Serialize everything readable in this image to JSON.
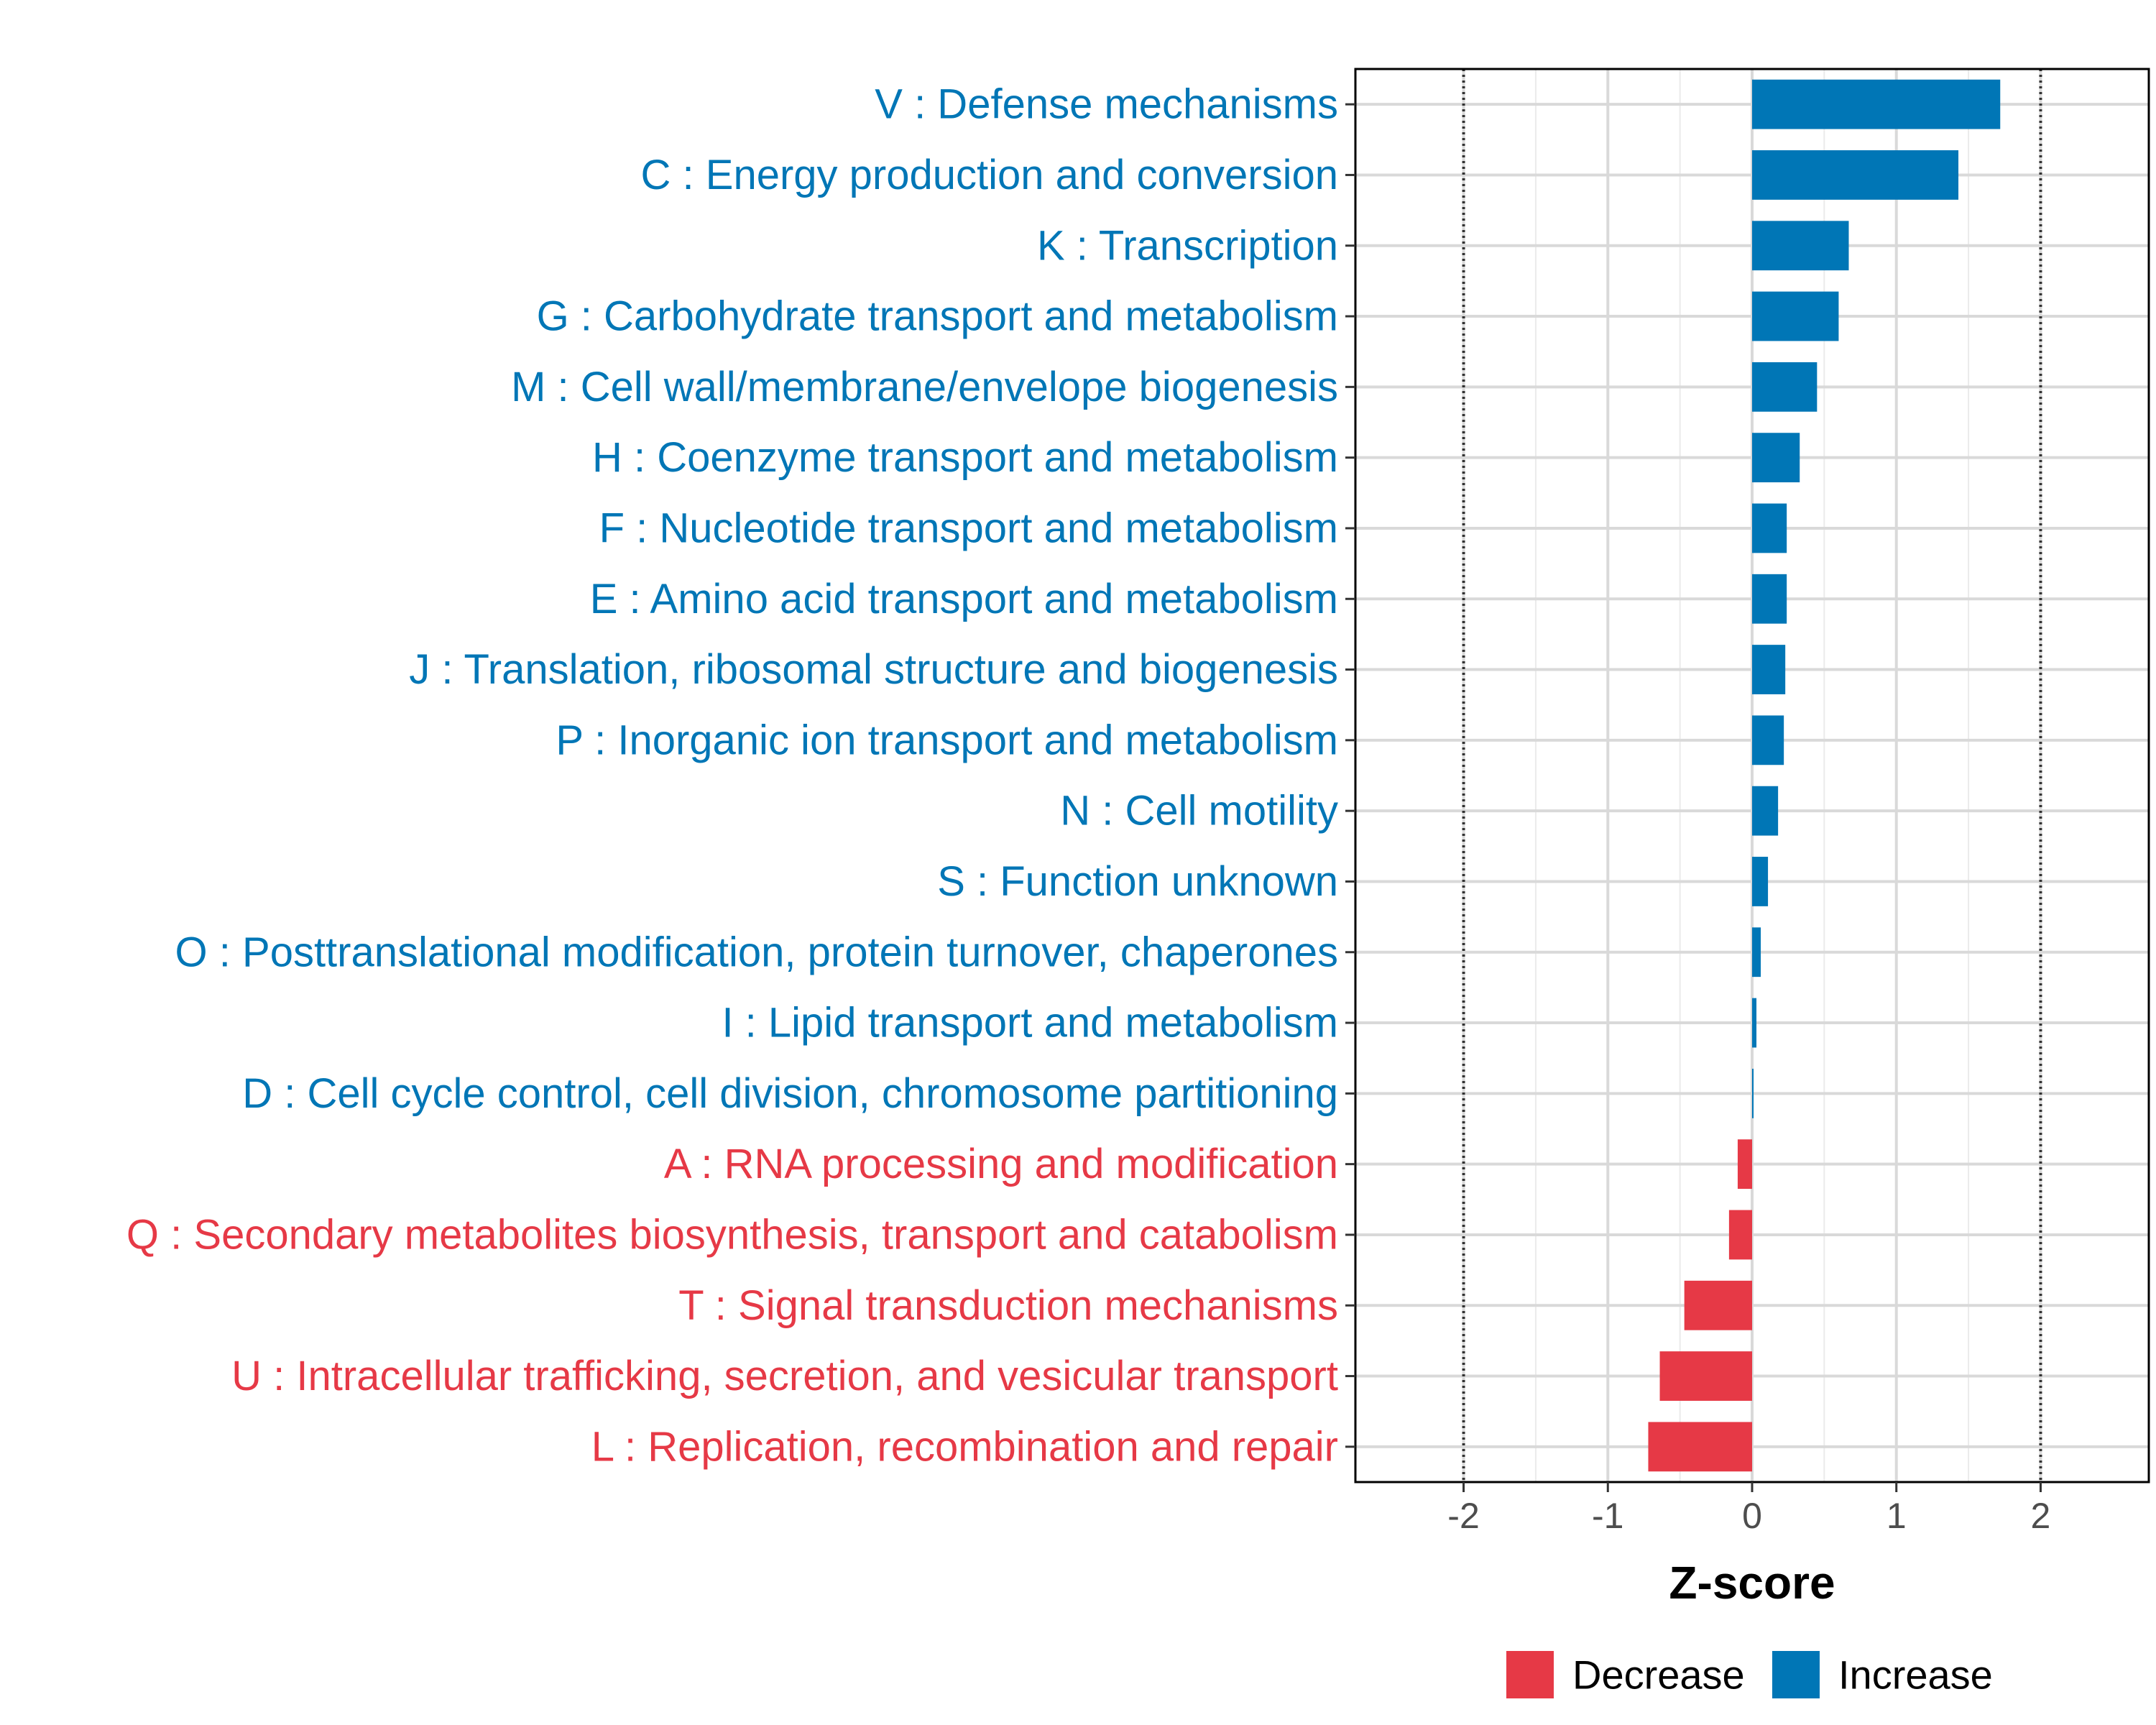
{
  "chart_data": {
    "type": "bar",
    "orientation": "horizontal",
    "title": "",
    "xlabel": "Z-score",
    "ylabel": "",
    "xlim": [
      -2.75,
      2.75
    ],
    "xticks": [
      -2,
      -1,
      0,
      1,
      2
    ],
    "reference_lines": [
      -2,
      2
    ],
    "grid": true,
    "legend_position": "bottom",
    "colors": {
      "Decrease": "#E63946",
      "Increase": "#0076B6"
    },
    "legend": [
      {
        "label": "Decrease",
        "color": "#E63946"
      },
      {
        "label": "Increase",
        "color": "#0076B6"
      }
    ],
    "categories": [
      "V : Defense mechanisms",
      "C : Energy production and conversion",
      "K : Transcription",
      "G : Carbohydrate transport and metabolism",
      "M : Cell wall/membrane/envelope biogenesis",
      "H : Coenzyme transport and metabolism",
      "F : Nucleotide transport and metabolism",
      "E : Amino acid transport and metabolism",
      "J : Translation, ribosomal structure and biogenesis",
      "P : Inorganic ion transport and metabolism",
      "N : Cell motility",
      "S : Function unknown",
      "O : Posttranslational modification, protein turnover, chaperones",
      "I : Lipid transport and metabolism",
      "D : Cell cycle control, cell division, chromosome partitioning",
      "A : RNA processing and modification",
      "Q : Secondary metabolites biosynthesis, transport and catabolism",
      "T : Signal transduction mechanisms",
      "U : Intracellular trafficking, secretion, and vesicular transport",
      "L : Replication, recombination and repair"
    ],
    "values": [
      1.72,
      1.43,
      0.67,
      0.6,
      0.45,
      0.33,
      0.24,
      0.24,
      0.23,
      0.22,
      0.18,
      0.11,
      0.06,
      0.03,
      0.01,
      -0.1,
      -0.16,
      -0.47,
      -0.64,
      -0.72
    ],
    "direction": [
      "Increase",
      "Increase",
      "Increase",
      "Increase",
      "Increase",
      "Increase",
      "Increase",
      "Increase",
      "Increase",
      "Increase",
      "Increase",
      "Increase",
      "Increase",
      "Increase",
      "Increase",
      "Decrease",
      "Decrease",
      "Decrease",
      "Decrease",
      "Decrease"
    ]
  }
}
